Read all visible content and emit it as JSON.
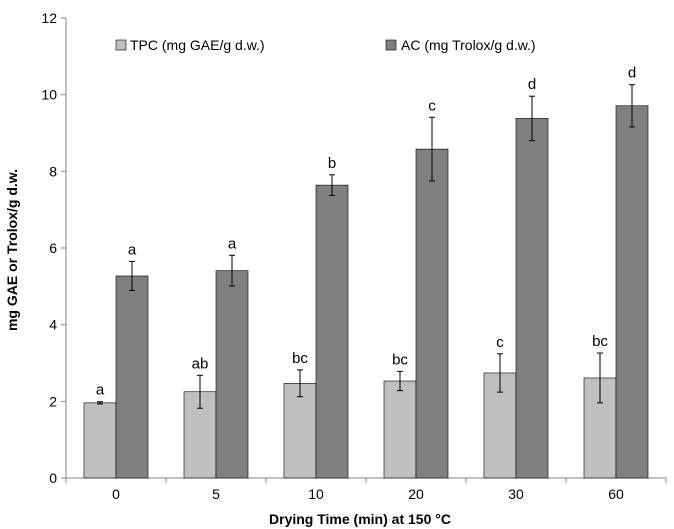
{
  "chart_data": {
    "type": "bar",
    "xlabel": "Drying Time (min) at 150 °C",
    "ylabel": "mg GAE or Trolox/g d.w.",
    "ylim": [
      0,
      12
    ],
    "yticks": [
      0,
      2,
      4,
      6,
      8,
      10,
      12
    ],
    "categories": [
      "0",
      "5",
      "10",
      "20",
      "30",
      "60"
    ],
    "legend_position": "top",
    "grid": false,
    "series": [
      {
        "name": "TPC (mg GAE/g d.w.)",
        "color": "#c0c0c0",
        "values": [
          1.96,
          2.25,
          2.47,
          2.53,
          2.74,
          2.61
        ],
        "errors": [
          0.03,
          0.43,
          0.35,
          0.25,
          0.5,
          0.65
        ],
        "labels": [
          "a",
          "ab",
          "bc",
          "bc",
          "c",
          "bc"
        ]
      },
      {
        "name": "AC (mg Trolox/g d.w.)",
        "color": "#808080",
        "values": [
          5.27,
          5.41,
          7.64,
          8.58,
          9.38,
          9.71
        ],
        "errors": [
          0.38,
          0.4,
          0.27,
          0.83,
          0.58,
          0.55
        ],
        "labels": [
          "a",
          "a",
          "b",
          "c",
          "d",
          "d"
        ]
      }
    ]
  }
}
